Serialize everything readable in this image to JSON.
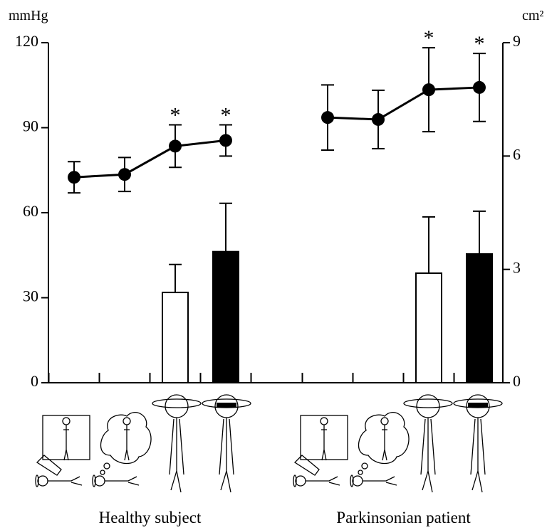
{
  "chart_data": {
    "type": "combo",
    "y_label": "mmHg",
    "y2_label": "cm²",
    "ylim": [
      0,
      120
    ],
    "yticks": [
      0,
      30,
      60,
      90,
      120
    ],
    "y2lim": [
      0,
      9
    ],
    "y2ticks": [
      0,
      3,
      6,
      9
    ],
    "bar_colors": [
      null,
      null,
      "#ffffff",
      "#000000"
    ],
    "line_color": "#000000",
    "groups": [
      {
        "label": "Healthy subject",
        "line": {
          "values": [
            72.5,
            73.5,
            83.5,
            85.5
          ],
          "errors": [
            5.5,
            6,
            7.5,
            5.5
          ],
          "markers": [
            null,
            null,
            "*",
            "*"
          ]
        },
        "bars": {
          "values": [
            null,
            null,
            2.39,
            3.47
          ],
          "errors": [
            null,
            null,
            0.74,
            1.28
          ]
        }
      },
      {
        "label": "Parkinsonian patient",
        "line": {
          "values": [
            93.6,
            92.9,
            103.4,
            104.2
          ],
          "errors": [
            11.5,
            10.3,
            14.8,
            12
          ],
          "markers": [
            null,
            null,
            "*",
            "*"
          ]
        },
        "bars": {
          "values": [
            null,
            null,
            2.9,
            3.41
          ],
          "errors": [
            null,
            null,
            1.49,
            1.13
          ]
        }
      }
    ]
  }
}
